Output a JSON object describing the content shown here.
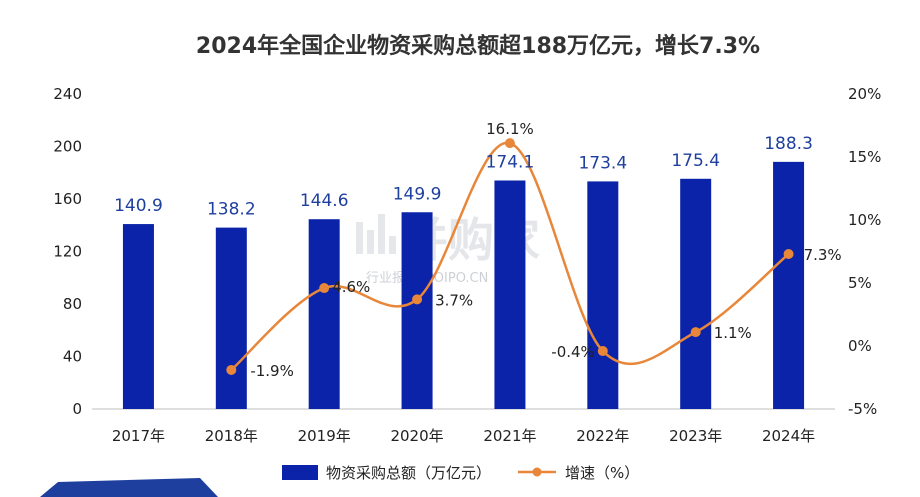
{
  "chart_data": {
    "type": "bar",
    "title": "2024年全国企业物资采购总额超188万亿元，增长7.3%",
    "categories": [
      "2017年",
      "2018年",
      "2019年",
      "2020年",
      "2021年",
      "2022年",
      "2023年",
      "2024年"
    ],
    "series": [
      {
        "name": "物资采购总额（万亿元）",
        "type": "bar",
        "axis": "left",
        "color": "#0a23a8",
        "values": [
          140.9,
          138.2,
          144.6,
          149.9,
          174.1,
          173.4,
          175.4,
          188.3
        ],
        "labels": [
          "140.9",
          "138.2",
          "144.6",
          "149.9",
          "174.1",
          "173.4",
          "175.4",
          "188.3"
        ]
      },
      {
        "name": "增速（%）",
        "type": "line",
        "axis": "right",
        "color": "#e8873a",
        "values": [
          null,
          -1.9,
          4.6,
          3.7,
          16.1,
          -0.4,
          1.1,
          7.3
        ],
        "labels": [
          "",
          "-1.9%",
          "4.6%",
          "3.7%",
          "16.1%",
          "-0.4%",
          "1.1%",
          "7.3%"
        ]
      }
    ],
    "y_left": {
      "min": 0,
      "max": 240,
      "ticks": [
        0,
        40,
        80,
        120,
        160,
        200,
        240
      ]
    },
    "y_right": {
      "min": -5,
      "max": 20,
      "ticks": [
        "-5%",
        "0%",
        "5%",
        "10%",
        "15%",
        "20%"
      ]
    },
    "grid": false,
    "legend": "bottom"
  },
  "watermark": {
    "brand": "并购家",
    "sub": "行业报告 IPOIPO.CN"
  }
}
